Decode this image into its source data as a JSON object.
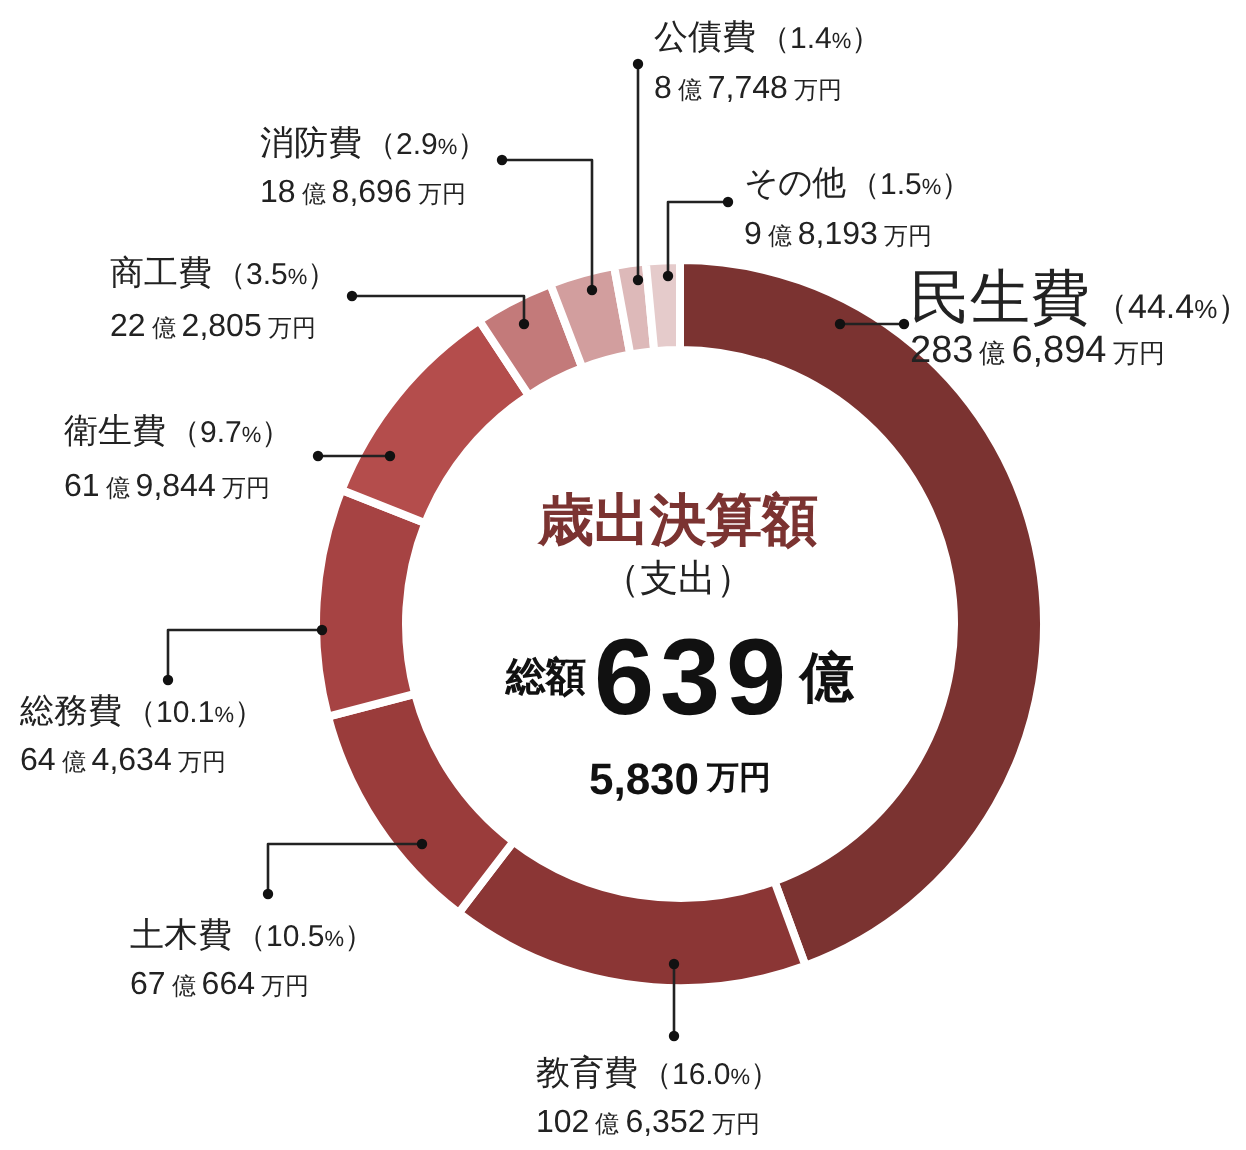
{
  "chart_data": {
    "type": "donut",
    "title": "歳出決算額",
    "subtitle": "（支出）",
    "categories": [
      "民生費",
      "教育費",
      "土木費",
      "総務費",
      "衛生費",
      "商工費",
      "消防費",
      "公債費",
      "その他"
    ],
    "values": [
      44.4,
      16.0,
      10.5,
      10.1,
      9.7,
      3.5,
      2.9,
      1.4,
      1.5
    ],
    "colors": [
      "#7b3331",
      "#8b3635",
      "#9a3c3b",
      "#a64343",
      "#b44d4c",
      "#c37a7a",
      "#d29e9e",
      "#ddb9b9",
      "#e5cbcb"
    ],
    "value_labels": [
      "（44.4%）",
      "（16.0%）",
      "（10.5%）",
      "（10.1%）",
      "（9.7%）",
      "（3.5%）",
      "（2.9%）",
      "（1.4%）",
      "（1.5%）"
    ],
    "annotations": [
      "総額639億",
      "5,830万円",
      {
        "text": "283億6,894万円",
        "x": "民生費"
      },
      {
        "text": "102億6,352万円",
        "x": "教育費"
      },
      {
        "text": "67億664万円",
        "x": "土木費"
      },
      {
        "text": "64億4,634万円",
        "x": "総務費"
      },
      {
        "text": "61億9,844万円",
        "x": "衛生費"
      },
      {
        "text": "22億2,805万円",
        "x": "商工費"
      },
      {
        "text": "18億8,696万円",
        "x": "消防費"
      },
      {
        "text": "8億7,748万円",
        "x": "公債費"
      },
      {
        "text": "9億8,193万円",
        "x": "その他"
      }
    ]
  }
}
